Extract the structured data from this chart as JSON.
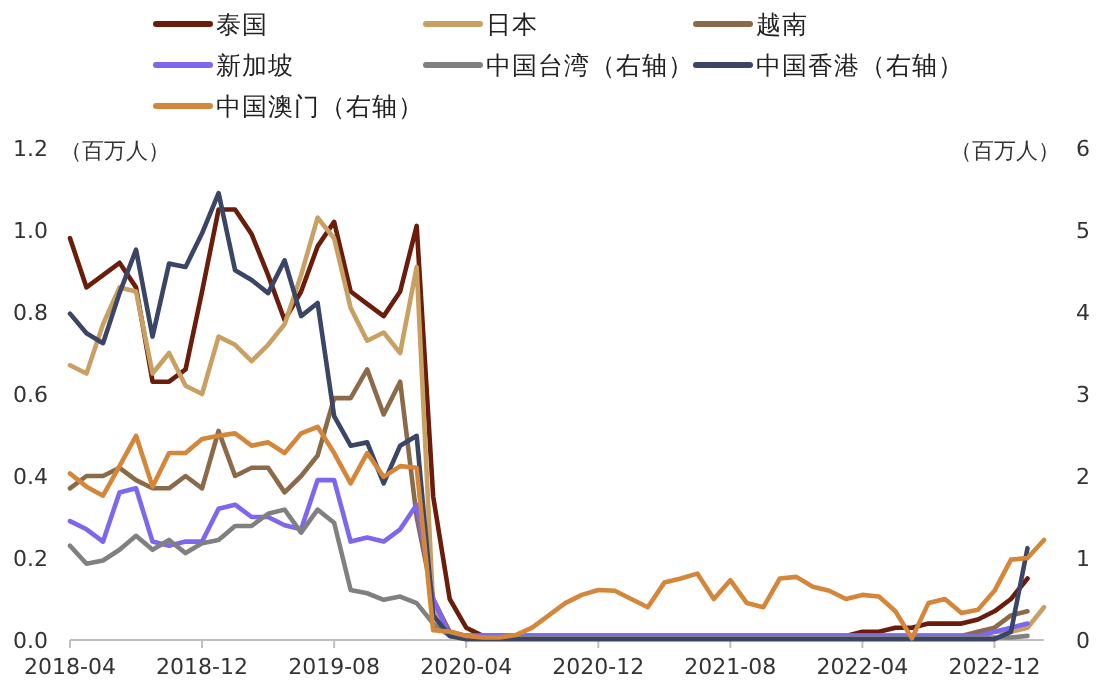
{
  "chart_data": {
    "type": "line",
    "ylabel": "（百万人）",
    "y2label": "（百万人）",
    "legend": "top",
    "grid": false,
    "x": [
      "2018-04",
      "2018-05",
      "2018-06",
      "2018-07",
      "2018-08",
      "2018-09",
      "2018-10",
      "2018-11",
      "2018-12",
      "2019-01",
      "2019-02",
      "2019-03",
      "2019-04",
      "2019-05",
      "2019-06",
      "2019-07",
      "2019-08",
      "2019-09",
      "2019-10",
      "2019-11",
      "2019-12",
      "2020-01",
      "2020-02",
      "2020-03",
      "2020-04",
      "2020-05",
      "2020-06",
      "2020-07",
      "2020-08",
      "2020-09",
      "2020-10",
      "2020-11",
      "2020-12",
      "2021-01",
      "2021-02",
      "2021-03",
      "2021-04",
      "2021-05",
      "2021-06",
      "2021-07",
      "2021-08",
      "2021-09",
      "2021-10",
      "2021-11",
      "2021-12",
      "2022-01",
      "2022-02",
      "2022-03",
      "2022-04",
      "2022-05",
      "2022-06",
      "2022-07",
      "2022-08",
      "2022-09",
      "2022-10",
      "2022-11",
      "2022-12",
      "2023-01",
      "2023-02",
      "2023-03"
    ],
    "xlim": [
      "2018-04",
      "2023-03"
    ],
    "xticks": [
      "2018-04",
      "2018-12",
      "2019-08",
      "2020-04",
      "2020-12",
      "2021-08",
      "2022-04",
      "2022-12"
    ],
    "ylim": [
      0,
      1.2
    ],
    "yticks": [
      {
        "value": 0,
        "label": "0.0"
      },
      {
        "value": 0.2,
        "label": "0.2"
      },
      {
        "value": 0.4,
        "label": "0.4"
      },
      {
        "value": 0.6,
        "label": "0.6"
      },
      {
        "value": 0.8,
        "label": "0.8"
      },
      {
        "value": 1.0,
        "label": "1.0"
      },
      {
        "value": 1.2,
        "label": "1.2"
      }
    ],
    "y2lim": [
      0,
      6
    ],
    "y2ticks": [
      0,
      1,
      2,
      3,
      4,
      5,
      6
    ],
    "series": [
      {
        "name": "泰国",
        "color": "#6b1d0c",
        "values": [
          0.98,
          0.86,
          0.89,
          0.92,
          0.86,
          0.63,
          0.63,
          0.66,
          0.85,
          1.05,
          1.05,
          0.99,
          0.89,
          0.78,
          0.85,
          0.96,
          1.02,
          0.85,
          0.82,
          0.79,
          0.85,
          1.01,
          0.35,
          0.1,
          0.03,
          0.01,
          0.01,
          0.01,
          0.01,
          0.01,
          0.01,
          0.01,
          0.01,
          0.01,
          0.01,
          0.01,
          0.01,
          0.01,
          0.01,
          0.01,
          0.01,
          0.01,
          0.01,
          0.01,
          0.01,
          0.01,
          0.01,
          0.01,
          0.02,
          0.02,
          0.03,
          0.03,
          0.04,
          0.04,
          0.04,
          0.05,
          0.07,
          0.1,
          0.15,
          null
        ]
      },
      {
        "name": "日本",
        "color": "#c9a063",
        "values": [
          0.67,
          0.65,
          0.77,
          0.86,
          0.85,
          0.65,
          0.7,
          0.62,
          0.6,
          0.74,
          0.72,
          0.68,
          0.72,
          0.77,
          0.89,
          1.03,
          0.98,
          0.81,
          0.73,
          0.75,
          0.7,
          0.91,
          0.08,
          0.02,
          0.01,
          0.01,
          0.01,
          0.01,
          0.01,
          0.01,
          0.01,
          0.01,
          0.01,
          0.01,
          0.01,
          0.01,
          0.01,
          0.01,
          0.01,
          0.01,
          0.01,
          0.01,
          0.01,
          0.01,
          0.01,
          0.01,
          0.01,
          0.01,
          0.01,
          0.01,
          0.01,
          0.01,
          0.01,
          0.01,
          0.01,
          0.01,
          0.02,
          0.02,
          0.03,
          0.08
        ]
      },
      {
        "name": "越南",
        "color": "#8b6a4a",
        "values": [
          0.37,
          0.4,
          0.4,
          0.42,
          0.39,
          0.37,
          0.37,
          0.4,
          0.37,
          0.51,
          0.4,
          0.42,
          0.42,
          0.36,
          0.4,
          0.45,
          0.59,
          0.59,
          0.66,
          0.55,
          0.63,
          0.3,
          0.1,
          0.02,
          0.01,
          0.01,
          0.01,
          0.01,
          0.01,
          0.01,
          0.01,
          0.01,
          0.01,
          0.01,
          0.01,
          0.01,
          0.01,
          0.01,
          0.01,
          0.01,
          0.01,
          0.01,
          0.01,
          0.01,
          0.01,
          0.01,
          0.01,
          0.01,
          0.01,
          0.01,
          0.01,
          0.01,
          0.01,
          0.01,
          0.01,
          0.02,
          0.03,
          0.06,
          0.07,
          null
        ]
      },
      {
        "name": "新加坡",
        "color": "#7b68ee",
        "values": [
          0.29,
          0.27,
          0.24,
          0.36,
          0.37,
          0.24,
          0.23,
          0.24,
          0.24,
          0.32,
          0.33,
          0.3,
          0.3,
          0.28,
          0.27,
          0.39,
          0.39,
          0.24,
          0.25,
          0.24,
          0.27,
          0.33,
          0.1,
          0.01,
          0.01,
          0.01,
          0.01,
          0.01,
          0.01,
          0.01,
          0.01,
          0.01,
          0.01,
          0.01,
          0.01,
          0.01,
          0.01,
          0.01,
          0.01,
          0.01,
          0.01,
          0.01,
          0.01,
          0.01,
          0.01,
          0.01,
          0.01,
          0.01,
          0.01,
          0.01,
          0.01,
          0.01,
          0.01,
          0.01,
          0.01,
          0.01,
          0.02,
          0.03,
          0.04,
          null
        ]
      },
      {
        "name": "中国台湾（右轴）",
        "color": "#808080",
        "axis": "y2",
        "values": [
          1.15,
          0.93,
          0.97,
          1.1,
          1.27,
          1.1,
          1.22,
          1.06,
          1.18,
          1.22,
          1.39,
          1.39,
          1.54,
          1.59,
          1.31,
          1.59,
          1.43,
          0.61,
          0.57,
          0.49,
          0.53,
          0.45,
          0.2,
          0.05,
          0.03,
          0.03,
          0.03,
          0.03,
          0.03,
          0.03,
          0.03,
          0.03,
          0.03,
          0.03,
          0.03,
          0.03,
          0.03,
          0.03,
          0.03,
          0.03,
          0.03,
          0.03,
          0.03,
          0.03,
          0.03,
          0.03,
          0.03,
          0.03,
          0.03,
          0.03,
          0.03,
          0.03,
          0.03,
          0.03,
          0.03,
          0.03,
          0.03,
          0.03,
          0.05,
          null
        ]
      },
      {
        "name": "中国香港（右轴）",
        "color": "#3b4566",
        "axis": "y2",
        "values": [
          3.98,
          3.74,
          3.62,
          4.23,
          4.76,
          3.7,
          4.59,
          4.55,
          4.96,
          5.45,
          4.51,
          4.39,
          4.23,
          4.63,
          3.95,
          4.11,
          2.73,
          2.37,
          2.41,
          1.91,
          2.37,
          2.49,
          0.3,
          0.05,
          0.01,
          0.01,
          0.01,
          0.01,
          0.01,
          0.01,
          0.01,
          0.01,
          0.01,
          0.01,
          0.01,
          0.01,
          0.01,
          0.01,
          0.01,
          0.01,
          0.01,
          0.01,
          0.01,
          0.01,
          0.01,
          0.01,
          0.01,
          0.01,
          0.01,
          0.01,
          0.01,
          0.01,
          0.01,
          0.01,
          0.01,
          0.01,
          0.01,
          0.1,
          1.12,
          null
        ]
      },
      {
        "name": "中国澳门（右轴）",
        "color": "#d4873a",
        "axis": "y2",
        "values": [
          2.03,
          1.87,
          1.76,
          2.12,
          2.49,
          1.87,
          2.28,
          2.28,
          2.45,
          2.49,
          2.52,
          2.37,
          2.41,
          2.28,
          2.52,
          2.6,
          2.28,
          1.91,
          2.28,
          1.99,
          2.12,
          2.1,
          0.12,
          0.1,
          0.05,
          0.03,
          0.03,
          0.06,
          0.15,
          0.3,
          0.45,
          0.55,
          0.61,
          0.6,
          0.5,
          0.4,
          0.7,
          0.75,
          0.81,
          0.5,
          0.73,
          0.45,
          0.4,
          0.75,
          0.77,
          0.65,
          0.6,
          0.5,
          0.55,
          0.53,
          0.35,
          0.02,
          0.45,
          0.5,
          0.33,
          0.37,
          0.6,
          0.98,
          1.0,
          1.22
        ]
      }
    ]
  }
}
